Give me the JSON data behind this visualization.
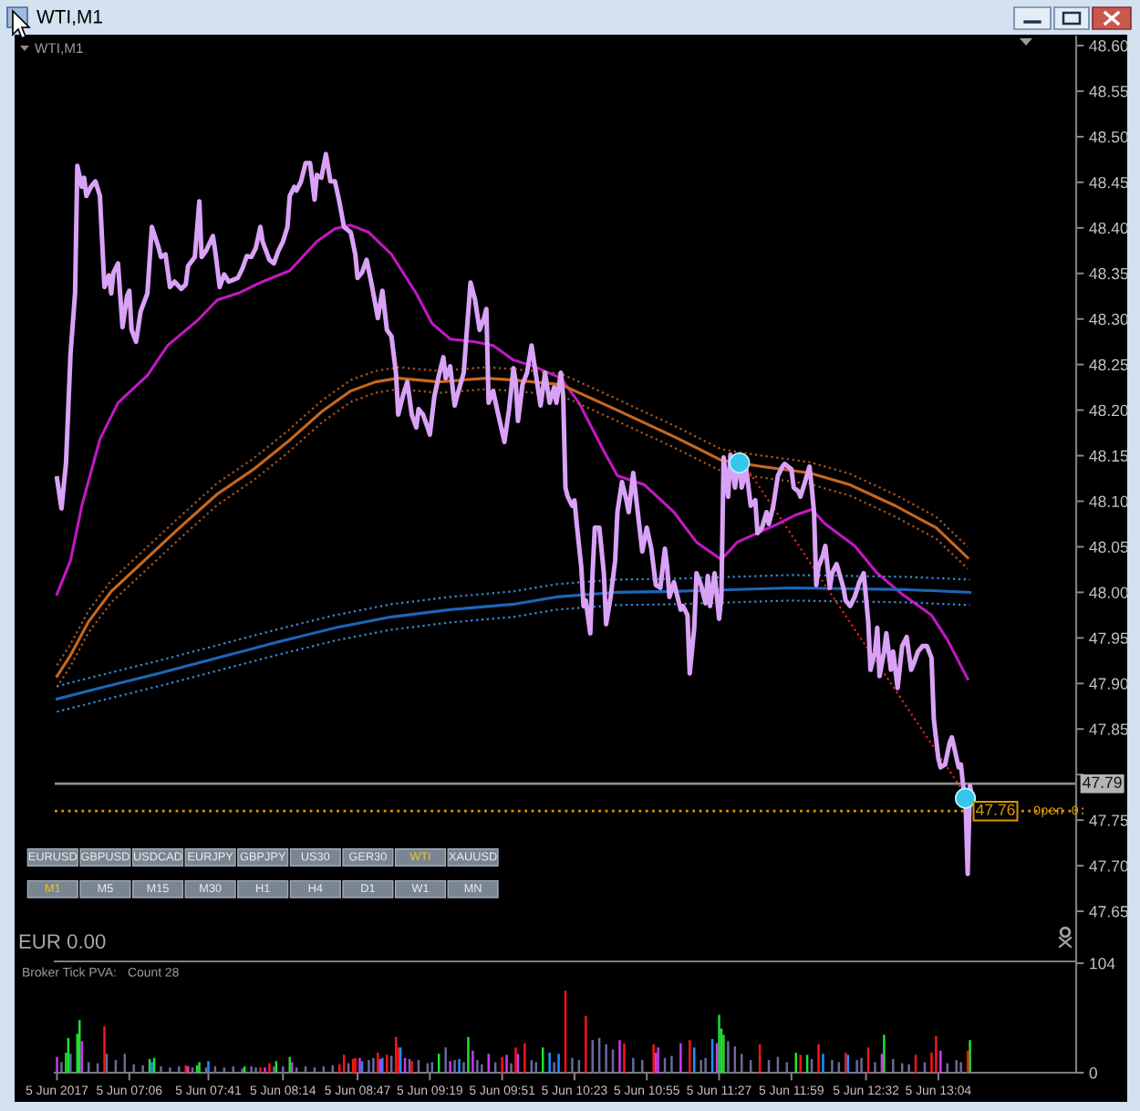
{
  "chart_data": [
    {
      "type": "line",
      "title": "WTI,M1",
      "subtitle": "WTI,M1",
      "xlim": [
        "2017-06-05T06:33",
        "2017-06-05T14:05"
      ],
      "ylim": [
        47.595,
        48.61
      ],
      "yticks": [
        {
          "value": 47.65,
          "label": "47.65"
        },
        {
          "value": 47.7,
          "label": "47.70"
        },
        {
          "value": 47.75,
          "label": "47.75"
        },
        {
          "value": 47.8,
          "label": null
        },
        {
          "value": 47.85,
          "label": "47.85"
        },
        {
          "value": 47.9,
          "label": "47.90"
        },
        {
          "value": 47.95,
          "label": "47.95"
        },
        {
          "value": 48.0,
          "label": "48.00"
        },
        {
          "value": 48.05,
          "label": "48.05"
        },
        {
          "value": 48.1,
          "label": "48.10"
        },
        {
          "value": 48.15,
          "label": "48.15"
        },
        {
          "value": 48.2,
          "label": "48.20"
        },
        {
          "value": 48.25,
          "label": "48.25"
        },
        {
          "value": 48.3,
          "label": "48.30"
        },
        {
          "value": 48.35,
          "label": "48.35"
        },
        {
          "value": 48.4,
          "label": "48.40"
        },
        {
          "value": 48.45,
          "label": "48.45"
        },
        {
          "value": 48.5,
          "label": "48.50"
        },
        {
          "value": 48.55,
          "label": "48.55"
        },
        {
          "value": 48.6,
          "label": "48.60"
        }
      ],
      "tick_labels": "y",
      "series": [
        {
          "color": "#d9a2f7",
          "x": [
            "2017-06-05T06:34",
            "2017-06-05T06:36",
            "2017-06-05T06:38",
            "2017-06-05T06:40",
            "2017-06-05T06:42",
            "2017-06-05T06:43",
            "2017-06-05T06:45",
            "2017-06-05T06:46",
            "2017-06-05T06:47",
            "2017-06-05T06:49",
            "2017-06-05T06:51",
            "2017-06-05T06:53",
            "2017-06-05T06:55",
            "2017-06-05T06:57",
            "2017-06-05T06:58",
            "2017-06-05T06:59",
            "2017-06-05T07:01",
            "2017-06-05T07:03",
            "2017-06-05T07:05",
            "2017-06-05T07:06",
            "2017-06-05T07:07",
            "2017-06-05T07:09",
            "2017-06-05T07:11",
            "2017-06-05T07:14",
            "2017-06-05T07:16",
            "2017-06-05T07:19",
            "2017-06-05T07:20",
            "2017-06-05T07:22",
            "2017-06-05T07:24",
            "2017-06-05T07:26",
            "2017-06-05T07:29",
            "2017-06-05T07:31",
            "2017-06-05T07:32",
            "2017-06-05T07:35",
            "2017-06-05T07:37",
            "2017-06-05T07:38",
            "2017-06-05T07:40",
            "2017-06-05T07:43",
            "2017-06-05T07:44",
            "2017-06-05T07:46",
            "2017-06-05T07:48",
            "2017-06-05T07:50",
            "2017-06-05T07:54",
            "2017-06-05T07:56",
            "2017-06-05T07:58",
            "2017-06-05T08:00",
            "2017-06-05T08:02",
            "2017-06-05T08:04",
            "2017-06-05T08:05",
            "2017-06-05T08:08",
            "2017-06-05T08:10",
            "2017-06-05T08:12",
            "2017-06-05T08:14",
            "2017-06-05T08:16",
            "2017-06-05T08:17",
            "2017-06-05T08:19",
            "2017-06-05T08:20",
            "2017-06-05T08:22",
            "2017-06-05T08:24",
            "2017-06-05T08:26",
            "2017-06-05T08:28",
            "2017-06-05T08:29",
            "2017-06-05T08:31",
            "2017-06-05T08:33",
            "2017-06-05T08:35",
            "2017-06-05T08:37",
            "2017-06-05T08:39",
            "2017-06-05T08:41",
            "2017-06-05T08:44",
            "2017-06-05T08:46",
            "2017-06-05T08:47",
            "2017-06-05T08:49",
            "2017-06-05T08:51",
            "2017-06-05T08:53",
            "2017-06-05T08:54",
            "2017-06-05T08:56",
            "2017-06-05T08:58",
            "2017-06-05T09:00",
            "2017-06-05T09:02",
            "2017-06-05T09:04",
            "2017-06-05T09:05",
            "2017-06-05T09:07",
            "2017-06-05T09:09",
            "2017-06-05T09:11",
            "2017-06-05T09:13",
            "2017-06-05T09:14",
            "2017-06-05T09:16",
            "2017-06-05T09:18",
            "2017-06-05T09:19",
            "2017-06-05T09:21",
            "2017-06-05T09:23",
            "2017-06-05T09:25",
            "2017-06-05T09:26",
            "2017-06-05T09:28",
            "2017-06-05T09:30",
            "2017-06-05T09:31",
            "2017-06-05T09:34",
            "2017-06-05T09:35",
            "2017-06-05T09:37",
            "2017-06-05T09:39",
            "2017-06-05T09:41",
            "2017-06-05T09:43",
            "2017-06-05T09:44",
            "2017-06-05T09:45",
            "2017-06-05T09:47",
            "2017-06-05T09:49",
            "2017-06-05T09:52",
            "2017-06-05T09:54",
            "2017-06-05T09:56",
            "2017-06-05T09:57",
            "2017-06-05T09:58",
            "2017-06-05T10:00",
            "2017-06-05T10:02",
            "2017-06-05T10:04",
            "2017-06-05T10:06",
            "2017-06-05T10:08",
            "2017-06-05T10:10",
            "2017-06-05T10:12",
            "2017-06-05T10:14",
            "2017-06-05T10:15",
            "2017-06-05T10:17",
            "2017-06-05T10:18",
            "2017-06-05T10:19",
            "2017-06-05T10:20",
            "2017-06-05T10:22",
            "2017-06-05T10:23",
            "2017-06-05T10:24",
            "2017-06-05T10:26",
            "2017-06-05T10:27",
            "2017-06-05T10:28",
            "2017-06-05T10:30",
            "2017-06-05T10:31",
            "2017-06-05T10:32",
            "2017-06-05T10:34",
            "2017-06-05T10:36",
            "2017-06-05T10:37",
            "2017-06-05T10:39",
            "2017-06-05T10:41",
            "2017-06-05T10:42",
            "2017-06-05T10:44",
            "2017-06-05T10:46",
            "2017-06-05T10:47",
            "2017-06-05T10:49",
            "2017-06-05T10:51",
            "2017-06-05T10:53",
            "2017-06-05T10:55",
            "2017-06-05T10:57",
            "2017-06-05T10:59",
            "2017-06-05T11:01",
            "2017-06-05T11:03",
            "2017-06-05T11:04",
            "2017-06-05T11:05",
            "2017-06-05T11:07",
            "2017-06-05T11:10",
            "2017-06-05T11:11",
            "2017-06-05T11:13",
            "2017-06-05T11:14",
            "2017-06-05T11:16",
            "2017-06-05T11:17",
            "2017-06-05T11:19",
            "2017-06-05T11:21",
            "2017-06-05T11:22",
            "2017-06-05T11:23",
            "2017-06-05T11:25",
            "2017-06-05T11:27",
            "2017-06-05T11:28",
            "2017-06-05T11:29",
            "2017-06-05T11:31",
            "2017-06-05T11:32",
            "2017-06-05T11:34",
            "2017-06-05T11:36",
            "2017-06-05T11:37",
            "2017-06-05T11:39",
            "2017-06-05T11:41",
            "2017-06-05T11:43",
            "2017-06-05T11:44",
            "2017-06-05T11:46",
            "2017-06-05T11:48",
            "2017-06-05T11:49",
            "2017-06-05T11:51",
            "2017-06-05T11:53",
            "2017-06-05T11:55",
            "2017-06-05T11:56",
            "2017-06-05T11:59",
            "2017-06-05T12:00",
            "2017-06-05T12:02",
            "2017-06-05T12:03",
            "2017-06-05T12:05",
            "2017-06-05T12:07",
            "2017-06-05T12:08",
            "2017-06-05T12:09",
            "2017-06-05T12:10",
            "2017-06-05T12:11",
            "2017-06-05T12:13",
            "2017-06-05T12:14",
            "2017-06-05T12:16",
            "2017-06-05T12:17",
            "2017-06-05T12:19",
            "2017-06-05T12:22",
            "2017-06-05T12:23",
            "2017-06-05T12:25",
            "2017-06-05T12:27",
            "2017-06-05T12:29",
            "2017-06-05T12:31",
            "2017-06-05T12:33",
            "2017-06-05T12:34",
            "2017-06-05T12:36",
            "2017-06-05T12:37",
            "2017-06-05T12:38",
            "2017-06-05T12:40",
            "2017-06-05T12:41",
            "2017-06-05T12:43",
            "2017-06-05T12:44",
            "2017-06-05T12:46",
            "2017-06-05T12:48",
            "2017-06-05T12:50",
            "2017-06-05T12:52",
            "2017-06-05T12:53",
            "2017-06-05T12:55",
            "2017-06-05T12:57",
            "2017-06-05T12:59",
            "2017-06-05T13:01",
            "2017-06-05T13:02",
            "2017-06-05T13:04",
            "2017-06-05T13:05",
            "2017-06-05T13:07",
            "2017-06-05T13:09",
            "2017-06-05T13:10",
            "2017-06-05T13:13",
            "2017-06-05T13:14",
            "2017-06-05T13:15",
            "2017-06-05T13:16",
            "2017-06-05T13:17",
            "2017-06-05T13:18",
            "2017-06-05T13:19"
          ],
          "values": [
            48.125,
            48.092,
            48.142,
            48.262,
            48.328,
            48.468,
            48.445,
            48.455,
            48.435,
            48.445,
            48.451,
            48.435,
            48.335,
            48.348,
            48.328,
            48.351,
            48.361,
            48.291,
            48.325,
            48.331,
            48.288,
            48.275,
            48.308,
            48.328,
            48.401,
            48.378,
            48.368,
            48.371,
            48.335,
            48.341,
            48.333,
            48.338,
            48.358,
            48.368,
            48.429,
            48.368,
            48.375,
            48.391,
            48.375,
            48.335,
            48.349,
            48.341,
            48.345,
            48.355,
            48.369,
            48.368,
            48.378,
            48.401,
            48.385,
            48.365,
            48.361,
            48.375,
            48.385,
            48.401,
            48.435,
            48.445,
            48.441,
            48.451,
            48.471,
            48.471,
            48.431,
            48.458,
            48.455,
            48.481,
            48.451,
            48.451,
            48.428,
            48.401,
            48.395,
            48.371,
            48.345,
            48.351,
            48.365,
            48.341,
            48.328,
            48.301,
            48.331,
            48.288,
            48.281,
            48.241,
            48.195,
            48.215,
            48.231,
            48.195,
            48.181,
            48.201,
            48.195,
            48.181,
            48.173,
            48.215,
            48.238,
            48.258,
            48.235,
            48.248,
            48.205,
            48.215,
            48.241,
            48.275,
            48.34,
            48.321,
            48.288,
            48.301,
            48.311,
            48.208,
            48.221,
            48.198,
            48.165,
            48.2,
            48.246,
            48.231,
            48.188,
            48.228,
            48.241,
            48.271,
            48.238,
            48.205,
            48.241,
            48.208,
            48.225,
            48.208,
            48.241,
            48.215,
            48.115,
            48.105,
            48.095,
            48.101,
            48.075,
            48.028,
            47.985,
            47.991,
            47.955,
            48.021,
            48.071,
            48.071,
            48.021,
            47.965,
            47.995,
            48.035,
            48.088,
            48.121,
            48.101,
            48.088,
            48.131,
            48.088,
            48.045,
            48.071,
            48.048,
            48.008,
            48.005,
            48.048,
            48.028,
            47.995,
            48.011,
            47.981,
            47.985,
            47.975,
            47.911,
            47.961,
            48.021,
            48.008,
            47.988,
            48.018,
            47.985,
            48.021,
            47.971,
            47.995,
            48.148,
            48.105,
            48.151,
            48.115,
            48.148,
            48.115,
            48.135,
            48.095,
            48.101,
            48.065,
            48.071,
            48.088,
            48.075,
            48.095,
            48.128,
            48.138,
            48.141,
            48.135,
            48.115,
            48.111,
            48.105,
            48.121,
            48.138,
            48.115,
            48.088,
            48.008,
            48.028,
            48.041,
            48.051,
            48.005,
            48.021,
            48.031,
            48.005,
            47.991,
            47.985,
            47.995,
            48.011,
            48.021,
            47.968,
            47.915,
            47.935,
            47.961,
            47.908,
            47.935,
            47.955,
            47.915,
            47.935,
            47.895,
            47.941,
            47.951,
            47.915,
            47.921,
            47.935,
            47.941,
            47.941,
            47.928,
            47.861,
            47.818,
            47.808,
            47.811,
            47.835,
            47.841,
            47.808,
            47.811,
            47.788,
            47.775,
            47.691,
            47.788,
            47.775
          ]
        },
        {
          "color": "#c218c2",
          "x": [
            "2017-06-05T06:34",
            "2017-06-05T06:40",
            "2017-06-05T06:45",
            "2017-06-05T06:53",
            "2017-06-05T07:01",
            "2017-06-05T07:14",
            "2017-06-05T07:23",
            "2017-06-05T07:36",
            "2017-06-05T07:45",
            "2017-06-05T07:55",
            "2017-06-05T08:05",
            "2017-06-05T08:17",
            "2017-06-05T08:29",
            "2017-06-05T08:37",
            "2017-06-05T08:44",
            "2017-06-05T08:52",
            "2017-06-05T09:02",
            "2017-06-05T09:13",
            "2017-06-05T09:20",
            "2017-06-05T09:28",
            "2017-06-05T09:39",
            "2017-06-05T09:47",
            "2017-06-05T09:56",
            "2017-06-05T10:05",
            "2017-06-05T10:17",
            "2017-06-05T10:25",
            "2017-06-05T10:36",
            "2017-06-05T10:42",
            "2017-06-05T10:54",
            "2017-06-05T11:07",
            "2017-06-05T11:17",
            "2017-06-05T11:28",
            "2017-06-05T11:35",
            "2017-06-05T11:44",
            "2017-06-05T11:53",
            "2017-06-05T12:01",
            "2017-06-05T12:08",
            "2017-06-05T12:14",
            "2017-06-05T12:27",
            "2017-06-05T12:37",
            "2017-06-05T12:48",
            "2017-06-05T13:01",
            "2017-06-05T13:08",
            "2017-06-05T13:17"
          ],
          "values": [
            47.998,
            48.035,
            48.095,
            48.168,
            48.208,
            48.238,
            48.271,
            48.298,
            48.321,
            48.329,
            48.341,
            48.353,
            48.385,
            48.399,
            48.403,
            48.395,
            48.371,
            48.328,
            48.295,
            48.278,
            48.275,
            48.271,
            48.255,
            48.248,
            48.235,
            48.208,
            48.155,
            48.128,
            48.118,
            48.088,
            48.055,
            48.036,
            48.055,
            48.065,
            48.075,
            48.085,
            48.091,
            48.075,
            48.051,
            48.021,
            47.998,
            47.975,
            47.948,
            47.905
          ]
        },
        {
          "color": "#c8681e",
          "x": [
            "2017-06-05T06:34",
            "2017-06-05T06:40",
            "2017-06-05T06:48",
            "2017-06-05T06:58",
            "2017-06-05T07:11",
            "2017-06-05T07:27",
            "2017-06-05T07:45",
            "2017-06-05T08:01",
            "2017-06-05T08:16",
            "2017-06-05T08:31",
            "2017-06-05T08:44",
            "2017-06-05T08:55",
            "2017-06-05T09:05",
            "2017-06-05T09:23",
            "2017-06-05T09:44",
            "2017-06-05T09:56",
            "2017-06-05T10:17",
            "2017-06-05T10:41",
            "2017-06-05T11:07",
            "2017-06-05T11:28",
            "2017-06-05T11:46",
            "2017-06-05T12:07",
            "2017-06-05T12:25",
            "2017-06-05T12:45",
            "2017-06-05T13:03",
            "2017-06-05T13:17"
          ],
          "values": [
            47.908,
            47.931,
            47.968,
            48.001,
            48.031,
            48.068,
            48.108,
            48.135,
            48.165,
            48.198,
            48.221,
            48.231,
            48.235,
            48.231,
            48.235,
            48.233,
            48.228,
            48.201,
            48.171,
            48.145,
            48.138,
            48.131,
            48.118,
            48.095,
            48.071,
            48.038
          ]
        },
        {
          "color": "#a8561c",
          "line_style": "dotted",
          "x": [
            "2017-06-05T06:34",
            "2017-06-05T06:40",
            "2017-06-05T06:48",
            "2017-06-05T06:58",
            "2017-06-05T07:11",
            "2017-06-05T07:27",
            "2017-06-05T07:45",
            "2017-06-05T08:01",
            "2017-06-05T08:16",
            "2017-06-05T08:31",
            "2017-06-05T08:44",
            "2017-06-05T08:55",
            "2017-06-05T09:05",
            "2017-06-05T09:23",
            "2017-06-05T09:44",
            "2017-06-05T09:56",
            "2017-06-05T10:17",
            "2017-06-05T10:41",
            "2017-06-05T11:07",
            "2017-06-05T11:28",
            "2017-06-05T11:46",
            "2017-06-05T12:07",
            "2017-06-05T12:25",
            "2017-06-05T12:45",
            "2017-06-05T13:03",
            "2017-06-05T13:17"
          ],
          "values": [
            47.92,
            47.943,
            47.98,
            48.013,
            48.043,
            48.08,
            48.12,
            48.147,
            48.177,
            48.21,
            48.233,
            48.243,
            48.247,
            48.243,
            48.247,
            48.245,
            48.24,
            48.213,
            48.183,
            48.157,
            48.15,
            48.143,
            48.13,
            48.107,
            48.083,
            48.05
          ]
        },
        {
          "color": "#a8561c",
          "line_style": "dotted",
          "x": [
            "2017-06-05T06:34",
            "2017-06-05T06:40",
            "2017-06-05T06:48",
            "2017-06-05T06:58",
            "2017-06-05T07:11",
            "2017-06-05T07:27",
            "2017-06-05T07:45",
            "2017-06-05T08:01",
            "2017-06-05T08:16",
            "2017-06-05T08:31",
            "2017-06-05T08:44",
            "2017-06-05T08:55",
            "2017-06-05T09:05",
            "2017-06-05T09:23",
            "2017-06-05T09:44",
            "2017-06-05T09:56",
            "2017-06-05T10:17",
            "2017-06-05T10:41",
            "2017-06-05T11:07",
            "2017-06-05T11:28",
            "2017-06-05T11:46",
            "2017-06-05T12:07",
            "2017-06-05T12:25",
            "2017-06-05T12:45",
            "2017-06-05T13:03",
            "2017-06-05T13:17"
          ],
          "values": [
            47.896,
            47.919,
            47.956,
            47.989,
            48.019,
            48.056,
            48.096,
            48.123,
            48.153,
            48.186,
            48.209,
            48.219,
            48.223,
            48.219,
            48.223,
            48.221,
            48.216,
            48.189,
            48.159,
            48.133,
            48.126,
            48.119,
            48.106,
            48.083,
            48.059,
            48.026
          ]
        },
        {
          "color": "#1c66b8",
          "x": [
            "2017-06-05T06:34",
            "2017-06-05T06:53",
            "2017-06-05T07:19",
            "2017-06-05T07:45",
            "2017-06-05T08:11",
            "2017-06-05T08:37",
            "2017-06-05T09:02",
            "2017-06-05T09:28",
            "2017-06-05T09:56",
            "2017-06-05T10:15",
            "2017-06-05T10:41",
            "2017-06-05T11:07",
            "2017-06-05T11:32",
            "2017-06-05T11:59",
            "2017-06-05T12:25",
            "2017-06-05T12:50",
            "2017-06-05T13:18"
          ],
          "values": [
            47.883,
            47.895,
            47.911,
            47.928,
            47.945,
            47.961,
            47.973,
            47.981,
            47.987,
            47.995,
            48.0,
            48.001,
            48.003,
            48.005,
            48.004,
            48.003,
            48.0
          ]
        },
        {
          "color": "#3a8ad0",
          "line_style": "dotted",
          "x": [
            "2017-06-05T06:34",
            "2017-06-05T06:53",
            "2017-06-05T07:19",
            "2017-06-05T07:45",
            "2017-06-05T08:11",
            "2017-06-05T08:37",
            "2017-06-05T09:02",
            "2017-06-05T09:28",
            "2017-06-05T09:56",
            "2017-06-05T10:15",
            "2017-06-05T10:41",
            "2017-06-05T11:07",
            "2017-06-05T11:32",
            "2017-06-05T11:59",
            "2017-06-05T12:25",
            "2017-06-05T12:50",
            "2017-06-05T13:18"
          ],
          "values": [
            47.897,
            47.909,
            47.925,
            47.942,
            47.959,
            47.975,
            47.987,
            47.995,
            48.001,
            48.009,
            48.014,
            48.015,
            48.017,
            48.019,
            48.018,
            48.017,
            48.014
          ]
        },
        {
          "color": "#3a8ad0",
          "line_style": "dotted",
          "x": [
            "2017-06-05T06:34",
            "2017-06-05T06:53",
            "2017-06-05T07:19",
            "2017-06-05T07:45",
            "2017-06-05T08:11",
            "2017-06-05T08:37",
            "2017-06-05T09:02",
            "2017-06-05T09:28",
            "2017-06-05T09:56",
            "2017-06-05T10:15",
            "2017-06-05T10:41",
            "2017-06-05T11:07",
            "2017-06-05T11:32",
            "2017-06-05T11:59",
            "2017-06-05T12:25",
            "2017-06-05T12:50",
            "2017-06-05T13:18"
          ],
          "values": [
            47.869,
            47.881,
            47.897,
            47.914,
            47.931,
            47.947,
            47.959,
            47.967,
            47.973,
            47.981,
            47.986,
            47.987,
            47.989,
            47.991,
            47.99,
            47.989,
            47.986
          ]
        },
        {
          "color": "#e02424",
          "line_style": "dotted",
          "x": [
            "2017-06-05T11:38",
            "2017-06-05T13:16"
          ],
          "values": [
            48.141,
            47.778
          ]
        },
        {
          "type": "scatter",
          "marker": "circle",
          "color": "#35c6ee",
          "x": [
            "2017-06-05T11:36",
            "2017-06-05T13:16"
          ],
          "values": [
            48.142,
            47.774
          ]
        }
      ],
      "ref_lines": [
        {
          "axis": "y",
          "value": 47.79,
          "label": "47.79",
          "color": "#8c8c8c"
        },
        {
          "axis": "y",
          "value": 47.76,
          "label": "47.76",
          "color": "#d89a00",
          "line_style": "dotted"
        }
      ],
      "annotations": [
        "EURUSD",
        "GBPUSD",
        "USDCAD",
        "EURJPY",
        "GBPJPY",
        "US30",
        "GER30",
        "WTI",
        "XAUUSD",
        "M1",
        "M5",
        "M15",
        "M30",
        "H1",
        "H4",
        "D1",
        "W1",
        "MN",
        "EUR 0.00",
        {
          "text": "Open 0:",
          "x": "2017-06-05T13:46",
          "y": 47.76
        }
      ]
    },
    {
      "type": "bar",
      "title": "Broker Tick PVA:",
      "annotations": [
        "Count 28"
      ],
      "xlim": [
        "2017-06-05T06:33",
        "2017-06-05T14:05"
      ],
      "xticks": [
        {
          "value": "2017-06-05T06:34",
          "label": "5 Jun 2017"
        },
        {
          "value": "2017-06-05T07:06",
          "label": "5 Jun 07:06"
        },
        {
          "value": "2017-06-05T07:41",
          "label": "5 Jun 07:41"
        },
        {
          "value": "2017-06-05T08:14",
          "label": "5 Jun 08:14"
        },
        {
          "value": "2017-06-05T08:47",
          "label": "5 Jun 08:47"
        },
        {
          "value": "2017-06-05T09:19",
          "label": "5 Jun 09:19"
        },
        {
          "value": "2017-06-05T09:51",
          "label": "5 Jun 09:51"
        },
        {
          "value": "2017-06-05T10:23",
          "label": "5 Jun 10:23"
        },
        {
          "value": "2017-06-05T10:55",
          "label": "5 Jun 10:55"
        },
        {
          "value": "2017-06-05T11:27",
          "label": "5 Jun 11:27"
        },
        {
          "value": "2017-06-05T11:59",
          "label": "5 Jun 11:59"
        },
        {
          "value": "2017-06-05T12:32",
          "label": "5 Jun 12:32"
        },
        {
          "value": "2017-06-05T13:04",
          "label": "5 Jun 13:04"
        }
      ],
      "ylim": [
        0,
        104
      ],
      "yticks": [
        0,
        104
      ],
      "series": [
        {
          "color": "#6a6a9c",
          "x": [
            "2017-06-05T06:36",
            "2017-06-05T06:40",
            "2017-06-05T06:48",
            "2017-06-05T06:52",
            "2017-06-05T06:56",
            "2017-06-05T07:00",
            "2017-06-05T07:04",
            "2017-06-05T07:08",
            "2017-06-05T07:12",
            "2017-06-05T07:20",
            "2017-06-05T07:24",
            "2017-06-05T07:28",
            "2017-06-05T07:34",
            "2017-06-05T07:40",
            "2017-06-05T07:44",
            "2017-06-05T07:48",
            "2017-06-05T07:52",
            "2017-06-05T07:56",
            "2017-06-05T08:00",
            "2017-06-05T08:02",
            "2017-06-05T08:10",
            "2017-06-05T08:14",
            "2017-06-05T08:20",
            "2017-06-05T08:24",
            "2017-06-05T08:28",
            "2017-06-05T08:32",
            "2017-06-05T08:36",
            "2017-06-05T08:43",
            "2017-06-05T08:52",
            "2017-06-05T08:54",
            "2017-06-05T09:02",
            "2017-06-05T09:10",
            "2017-06-05T09:14",
            "2017-06-05T09:18",
            "2017-06-05T09:20",
            "2017-06-05T09:26",
            "2017-06-05T09:30",
            "2017-06-05T09:34",
            "2017-06-05T09:40",
            "2017-06-05T09:42",
            "2017-06-05T09:48",
            "2017-06-05T09:55",
            "2017-06-05T10:04",
            "2017-06-05T10:06",
            "2017-06-05T10:14",
            "2017-06-05T10:22",
            "2017-06-05T10:25",
            "2017-06-05T10:31",
            "2017-06-05T10:34",
            "2017-06-05T10:37",
            "2017-06-05T10:40",
            "2017-06-05T10:49",
            "2017-06-05T10:53",
            "2017-06-05T11:03",
            "2017-06-05T11:06",
            "2017-06-05T11:19",
            "2017-06-05T11:21",
            "2017-06-05T11:31",
            "2017-06-05T11:34",
            "2017-06-05T11:37",
            "2017-06-05T11:41",
            "2017-06-05T11:49",
            "2017-06-05T11:53",
            "2017-06-05T11:57",
            "2017-06-05T12:08",
            "2017-06-05T12:17",
            "2017-06-05T12:20",
            "2017-06-05T12:28",
            "2017-06-05T12:30",
            "2017-06-05T12:36",
            "2017-06-05T12:44",
            "2017-06-05T12:48",
            "2017-06-05T12:51",
            "2017-06-05T12:58",
            "2017-06-05T13:08",
            "2017-06-05T13:12",
            "2017-06-05T13:14"
          ],
          "values": [
            10,
            18,
            10,
            9,
            18,
            12,
            18,
            8,
            7,
            6,
            5,
            6,
            5,
            5,
            6,
            5,
            6,
            4,
            6,
            5,
            6,
            6,
            5,
            6,
            5,
            6,
            7,
            9,
            12,
            14,
            16,
            13,
            12,
            9,
            10,
            24,
            12,
            10,
            12,
            8,
            10,
            9,
            12,
            10,
            10,
            14,
            12,
            31,
            33,
            27,
            22,
            14,
            12,
            14,
            16,
            12,
            14,
            30,
            25,
            18,
            12,
            12,
            15,
            10,
            13,
            12,
            10,
            12,
            14,
            10,
            13,
            9,
            8,
            10,
            9,
            12,
            10
          ]
        },
        {
          "color": "#ff1414",
          "x": [
            "2017-06-05T06:55",
            "2017-06-05T07:31",
            "2017-06-05T08:04",
            "2017-06-05T08:08",
            "2017-06-05T08:39",
            "2017-06-05T08:41",
            "2017-06-05T08:45",
            "2017-06-05T08:46",
            "2017-06-05T08:56",
            "2017-06-05T09:00",
            "2017-06-05T09:04",
            "2017-06-05T09:05",
            "2017-06-05T09:11",
            "2017-06-05T09:51",
            "2017-06-05T09:57",
            "2017-06-05T10:01",
            "2017-06-05T10:19",
            "2017-06-05T10:28",
            "2017-06-05T10:45",
            "2017-06-05T10:58",
            "2017-06-05T11:14",
            "2017-06-05T11:45",
            "2017-06-05T12:03",
            "2017-06-05T12:11",
            "2017-06-05T12:23",
            "2017-06-05T12:33",
            "2017-06-05T12:54",
            "2017-06-05T13:01",
            "2017-06-05T13:03",
            "2017-06-05T13:17"
          ],
          "values": [
            44,
            7,
            5,
            9,
            8,
            17,
            13,
            14,
            19,
            17,
            34,
            24,
            11,
            15,
            24,
            28,
            78,
            54,
            28,
            27,
            31,
            27,
            17,
            27,
            19,
            24,
            17,
            19,
            35,
            21
          ]
        },
        {
          "color": "#22e032",
          "x": [
            "2017-06-05T06:38",
            "2017-06-05T06:39",
            "2017-06-05T06:43",
            "2017-06-05T06:44",
            "2017-06-05T07:15",
            "2017-06-05T07:17",
            "2017-06-05T07:36",
            "2017-06-05T07:37",
            "2017-06-05T07:57",
            "2017-06-05T08:11",
            "2017-06-05T08:17",
            "2017-06-05T09:23",
            "2017-06-05T09:36",
            "2017-06-05T10:09",
            "2017-06-05T11:27",
            "2017-06-05T11:28",
            "2017-06-05T11:29",
            "2017-06-05T12:01",
            "2017-06-05T12:06",
            "2017-06-05T12:40",
            "2017-06-05T13:18"
          ],
          "values": [
            19,
            33,
            37,
            50,
            13,
            14,
            7,
            10,
            6,
            11,
            15,
            18,
            34,
            24,
            55,
            42,
            36,
            19,
            17,
            36,
            31
          ]
        },
        {
          "color": "#1e90ff",
          "x": [
            "2017-06-05T07:16",
            "2017-06-05T07:41",
            "2017-06-05T08:49",
            "2017-06-05T08:58",
            "2017-06-05T09:06",
            "2017-06-05T09:32",
            "2017-06-05T10:12",
            "2017-06-05T10:16",
            "2017-06-05T11:16",
            "2017-06-05T11:24",
            "2017-06-05T12:13",
            "2017-06-05T12:24"
          ],
          "values": [
            10,
            11,
            11,
            14,
            24,
            13,
            19,
            18,
            24,
            32,
            18,
            17
          ]
        },
        {
          "color": "#c83cf0",
          "x": [
            "2017-06-05T06:34",
            "2017-06-05T06:45",
            "2017-06-05T07:32",
            "2017-06-05T08:06",
            "2017-06-05T08:18",
            "2017-06-05T08:48",
            "2017-06-05T08:57",
            "2017-06-05T09:08",
            "2017-06-05T09:28",
            "2017-06-05T09:38",
            "2017-06-05T09:45",
            "2017-06-05T09:53",
            "2017-06-05T09:58",
            "2017-06-05T10:43",
            "2017-06-05T10:59",
            "2017-06-05T11:00",
            "2017-06-05T11:10",
            "2017-06-05T11:26",
            "2017-06-05T12:39",
            "2017-06-05T13:05"
          ],
          "values": [
            15,
            30,
            6,
            5,
            10,
            14,
            13,
            14,
            11,
            21,
            18,
            17,
            18,
            31,
            19,
            24,
            28,
            28,
            18,
            21
          ]
        }
      ]
    }
  ]
}
